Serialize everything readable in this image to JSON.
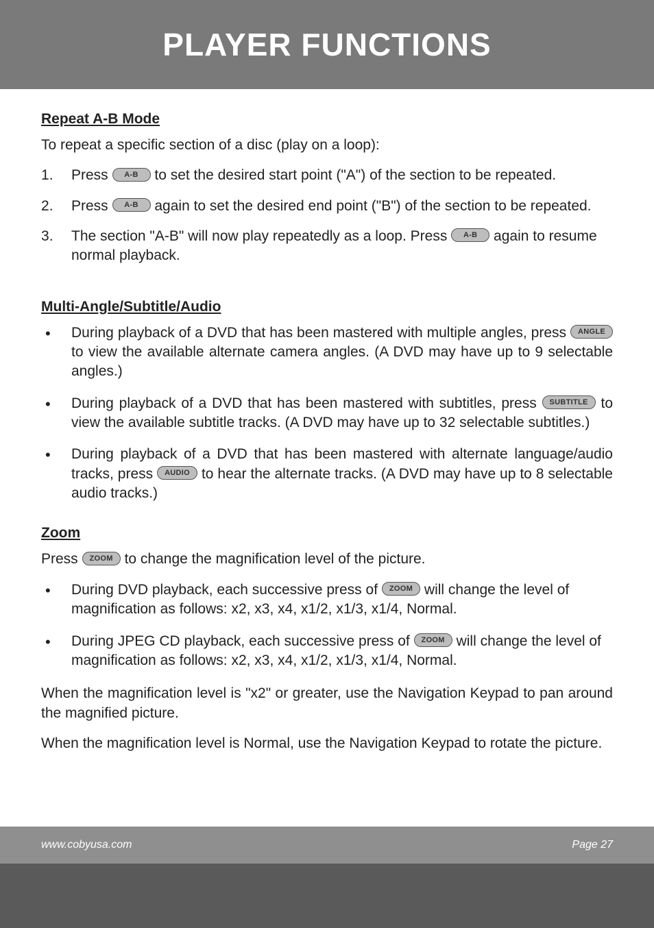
{
  "colors": {
    "page_bg": "#ffffff",
    "outer_bg": "#5a5a5a",
    "header_bg": "#7a7a7a",
    "footer_bg": "#8f8f8f",
    "text": "#222222",
    "pill_bg": "#bdbdbd",
    "pill_border": "#555555",
    "white": "#ffffff"
  },
  "typography": {
    "title_fontsize": 46,
    "heading_fontsize": 21,
    "body_fontsize": 21,
    "pill_fontsize": 11,
    "footer_fontsize": 16
  },
  "header": {
    "title": "PLAYER FUNCTIONS"
  },
  "buttons": {
    "ab": "A-B",
    "angle": "ANGLE",
    "subtitle": "SUBTITLE",
    "audio": "AUDIO",
    "zoom": "ZOOM"
  },
  "sections": {
    "repeat": {
      "heading": "Repeat A-B Mode",
      "intro": "To repeat a specific section of a disc (play on a loop):",
      "items": [
        {
          "pre": "Press ",
          "btn": "ab",
          "post": " to set the desired start point (\"A\") of the section to be repeated."
        },
        {
          "pre": "Press ",
          "btn": "ab",
          "post": " again to set the desired end point (\"B\") of the section to be repeated."
        },
        {
          "pre": "The section \"A-B\" will now play repeatedly as a loop. Press ",
          "btn": "ab",
          "post": " again to resume normal playback."
        }
      ]
    },
    "multi": {
      "heading": "Multi-Angle/Subtitle/Audio",
      "items": [
        {
          "pre": "During playback of a DVD that has been mastered with multiple angles, press ",
          "btn": "angle",
          "post": " to view the available alternate camera angles. (A DVD may have up to 9 selectable angles.)"
        },
        {
          "pre": "During playback of a DVD that has been mastered with subtitles, press ",
          "btn": "subtitle",
          "post": " to view the available subtitle tracks. (A DVD may have up to 32 selectable subtitles.)"
        },
        {
          "pre": "During playback of a DVD that has been mastered with alternate language/audio tracks, press ",
          "btn": "audio",
          "post": " to hear the alternate tracks. (A DVD may have up to 8 selectable audio tracks.)"
        }
      ]
    },
    "zoom": {
      "heading": "Zoom",
      "intro_pre": "Press ",
      "intro_btn": "zoom",
      "intro_post": " to change the magnification level of the picture.",
      "items": [
        {
          "pre": "During DVD playback, each successive press of ",
          "btn": "zoom",
          "post": " will change the level of magnification as follows: x2, x3, x4, x1/2, x1/3, x1/4, Normal."
        },
        {
          "pre": "During JPEG CD playback, each successive press of ",
          "btn": "zoom",
          "post": " will change the level of magnification as follows: x2, x3, x4, x1/2, x1/3, x1/4, Normal."
        }
      ],
      "para1": "When the magnification level is \"x2\" or greater, use the Navigation Keypad to pan around the magnified picture.",
      "para2": "When the magnification level is Normal, use the Navigation Keypad to rotate the picture."
    }
  },
  "footer": {
    "left": "www.cobyusa.com",
    "right": "Page 27"
  }
}
